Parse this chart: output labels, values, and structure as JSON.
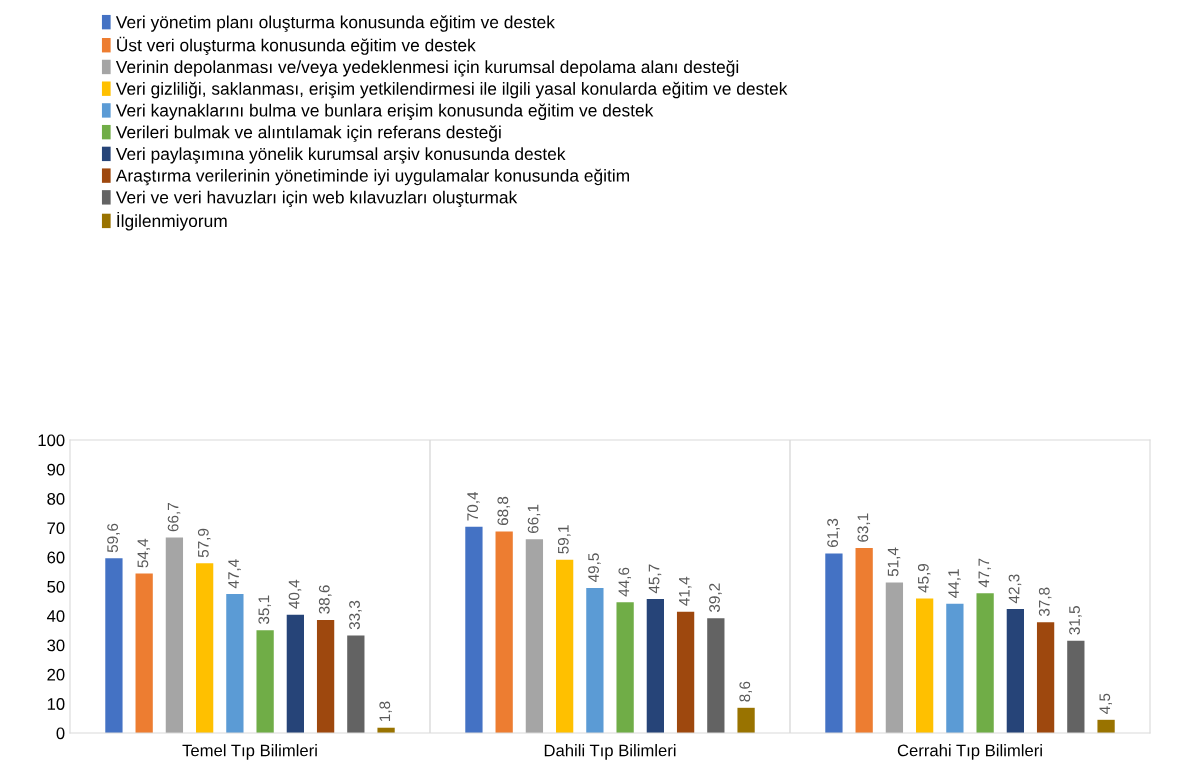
{
  "chart_data": {
    "type": "bar",
    "categories": [
      "Temel Tıp Bilimleri",
      "Dahili Tıp Bilimleri",
      "Cerrahi Tıp Bilimleri"
    ],
    "series": [
      {
        "name": "Veri yönetim planı oluşturma konusunda eğitim ve destek",
        "color": "#4472c4",
        "values": [
          59.6,
          70.4,
          61.3
        ],
        "value_labels": [
          "59,6",
          "70,4",
          "61,3"
        ]
      },
      {
        "name": "Üst veri oluşturma konusunda eğitim ve destek",
        "color": "#ed7d31",
        "values": [
          54.4,
          68.8,
          63.1
        ],
        "value_labels": [
          "54,4",
          "68,8",
          "63,1"
        ]
      },
      {
        "name": "Verinin depolanması ve/veya yedeklenmesi için kurumsal depolama alanı desteği",
        "color": "#a5a5a5",
        "values": [
          66.7,
          66.1,
          51.4
        ],
        "value_labels": [
          "66,7",
          "66,1",
          "51,4"
        ]
      },
      {
        "name": "Veri gizliliği, saklanması, erişim yetkilendirmesi ile ilgili yasal konularda eğitim ve destek",
        "color": "#ffc000",
        "values": [
          57.9,
          59.1,
          45.9
        ],
        "value_labels": [
          "57,9",
          "59,1",
          "45,9"
        ]
      },
      {
        "name": "Veri kaynaklarını bulma ve bunlara erişim konusunda eğitim ve destek",
        "color": "#5b9bd5",
        "values": [
          47.4,
          49.5,
          44.1
        ],
        "value_labels": [
          "47,4",
          "49,5",
          "44,1"
        ]
      },
      {
        "name": "Verileri bulmak ve alıntılamak için referans desteği",
        "color": "#70ad47",
        "values": [
          35.1,
          44.6,
          47.7
        ],
        "value_labels": [
          "35,1",
          "44,6",
          "47,7"
        ]
      },
      {
        "name": "Veri paylaşımına yönelik kurumsal arşiv konusunda destek",
        "color": "#264478",
        "values": [
          40.4,
          45.7,
          42.3
        ],
        "value_labels": [
          "40,4",
          "45,7",
          "42,3"
        ]
      },
      {
        "name": "Araştırma verilerinin yönetiminde iyi uygulamalar konusunda eğitim",
        "color": "#9e480e",
        "values": [
          38.6,
          41.4,
          37.8
        ],
        "value_labels": [
          "38,6",
          "41,4",
          "37,8"
        ]
      },
      {
        "name": "Veri ve veri havuzları için web kılavuzları oluşturmak",
        "color": "#636363",
        "values": [
          33.3,
          39.2,
          31.5
        ],
        "value_labels": [
          "33,3",
          "39,2",
          "31,5"
        ]
      },
      {
        "name": "İlgilenmiyorum",
        "color": "#997300",
        "values": [
          1.8,
          8.6,
          4.5
        ],
        "value_labels": [
          "1,8",
          "8,6",
          "4,5"
        ]
      }
    ],
    "ylim": [
      0,
      100
    ],
    "yticks": [
      0,
      10,
      20,
      30,
      40,
      50,
      60,
      70,
      80,
      90,
      100
    ],
    "grid": "x",
    "legend": "top left"
  }
}
